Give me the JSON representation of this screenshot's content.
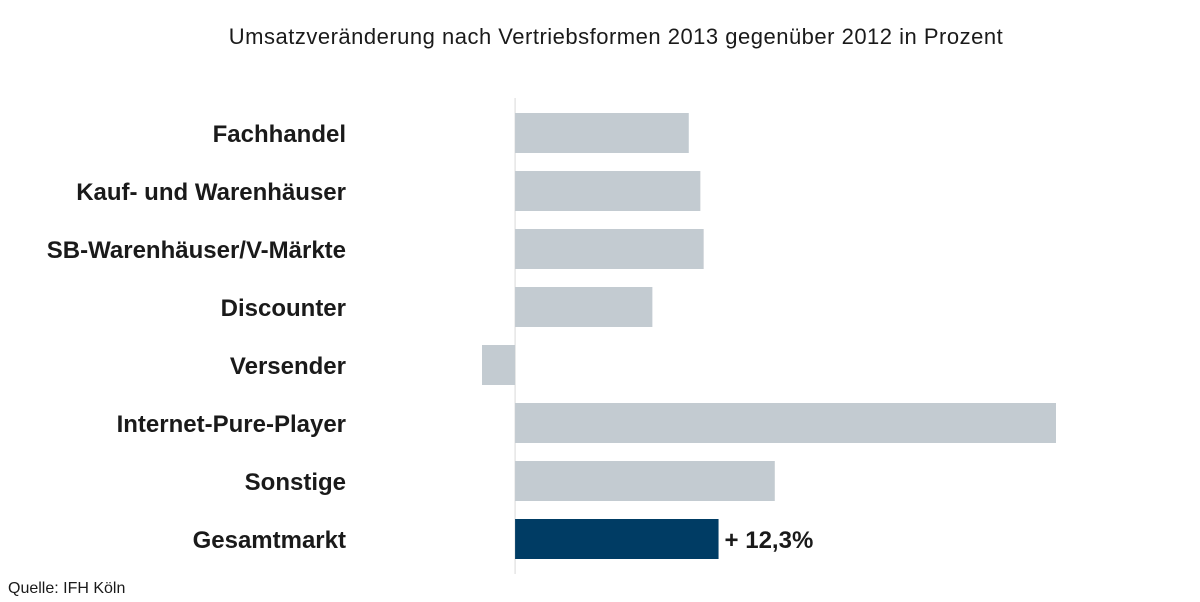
{
  "chart_data": {
    "type": "bar",
    "orientation": "horizontal",
    "title": "Umsatzveränderung nach Vertriebsformen 2013 gegenüber 2012 in Prozent",
    "categories": [
      "Fachhandel",
      "Kauf- und Warenhäuser",
      "SB-Warenhäuser/V-Märkte",
      "Discounter",
      "Versender",
      "Internet-Pure-Player",
      "Sonstige",
      "Gesamtmarkt"
    ],
    "values": [
      10.5,
      11.2,
      11.4,
      8.3,
      -2.0,
      32.7,
      15.7,
      12.3
    ],
    "highlight_index": 7,
    "data_labels": [
      "",
      "",
      "",
      "",
      "",
      "",
      "",
      "+ 12,3%"
    ],
    "xlim": [
      -2.0,
      32.7
    ],
    "colors": {
      "bar": "#c3cbd1",
      "highlight": "#003c64",
      "axis": "#d9d9d9"
    },
    "xlabel": "",
    "ylabel": "",
    "grid": false,
    "source": "Quelle: IFH Köln"
  }
}
